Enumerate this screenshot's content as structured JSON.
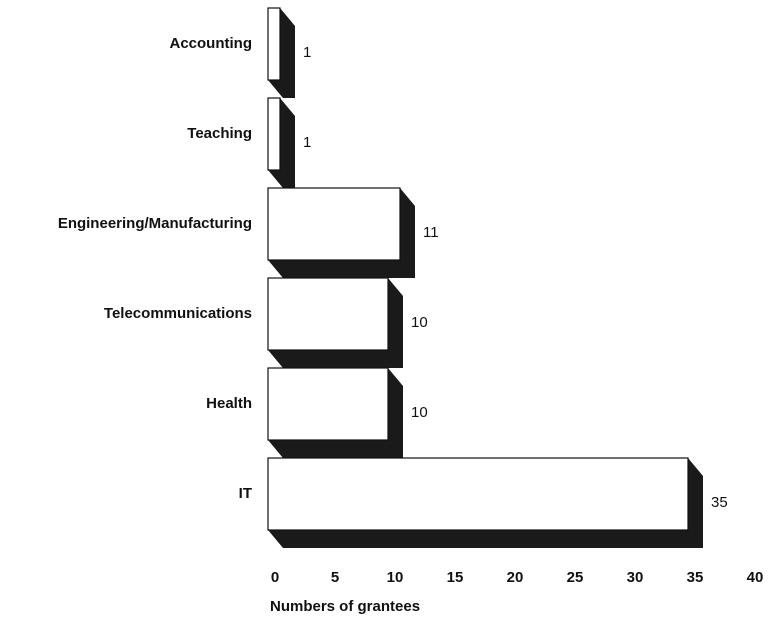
{
  "chart_data": {
    "type": "bar",
    "orientation": "horizontal",
    "3d": true,
    "categories": [
      "Accounting",
      "Teaching",
      "Engineering/Manufacturing",
      "Telecommunications",
      "Health",
      "IT"
    ],
    "values": [
      1,
      1,
      11,
      10,
      10,
      35
    ],
    "color": "#ffffff",
    "depth_color": "#1a1a1a",
    "xlim": [
      0,
      40
    ],
    "xticks": [
      0,
      5,
      10,
      15,
      20,
      25,
      30,
      35,
      40
    ],
    "x_label": "Numbers of grantees",
    "grid": false
  }
}
